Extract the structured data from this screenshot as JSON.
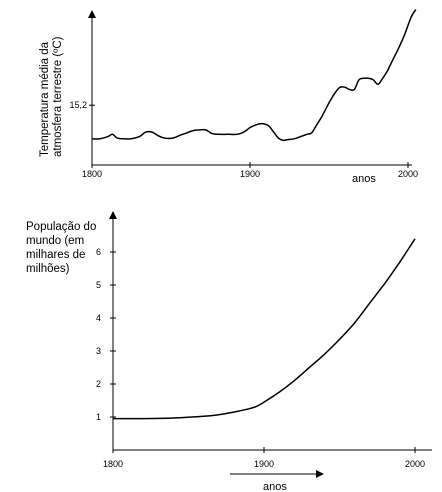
{
  "chart_data": [
    {
      "type": "line",
      "ylabel": "Temperatura média da atmosfera terrestre (ºC)",
      "ylabel_lines": [
        "Temperatura média da",
        "atmosfera terrestre (ºC)"
      ],
      "xlabel": "anos",
      "x_ticks": [
        1800,
        1900,
        2000
      ],
      "y_ticks": [
        15.2
      ],
      "y_tick_labels": [
        "15,2"
      ],
      "xlim": [
        1800,
        2005
      ],
      "ylim": [
        14.4,
        16.5
      ],
      "grid": false,
      "series": [
        {
          "x": [
            1800,
            1805,
            1810,
            1813,
            1816,
            1820,
            1825,
            1830,
            1834,
            1838,
            1842,
            1846,
            1851,
            1856,
            1860,
            1864,
            1868,
            1872,
            1876,
            1880,
            1886,
            1892,
            1896,
            1900,
            1903,
            1906,
            1909,
            1912,
            1915,
            1918,
            1921,
            1924,
            1928,
            1932,
            1936,
            1939,
            1942,
            1945,
            1948,
            1951,
            1954,
            1957,
            1960,
            1963,
            1966,
            1969,
            1972,
            1973,
            1975,
            1978,
            1981,
            1984,
            1987,
            1990,
            1994,
            1998,
            2002,
            2005
          ],
          "y": [
            14.75,
            14.75,
            14.78,
            14.81,
            14.76,
            14.75,
            14.75,
            14.78,
            14.84,
            14.84,
            14.79,
            14.76,
            14.76,
            14.8,
            14.83,
            14.86,
            14.87,
            14.87,
            14.82,
            14.81,
            14.81,
            14.81,
            14.84,
            14.9,
            14.93,
            14.95,
            14.95,
            14.92,
            14.84,
            14.76,
            14.73,
            14.74,
            14.75,
            14.78,
            14.81,
            14.83,
            14.93,
            15.03,
            15.15,
            15.27,
            15.37,
            15.44,
            15.44,
            15.41,
            15.41,
            15.54,
            15.56,
            15.56,
            15.56,
            15.54,
            15.48,
            15.56,
            15.66,
            15.79,
            15.96,
            16.15,
            16.38,
            16.48
          ]
        }
      ]
    },
    {
      "type": "line",
      "ylabel": "População do mundo (em milhares de milhões)",
      "ylabel_lines": [
        "População do",
        "mundo (em",
        "milhares de",
        "milhões)"
      ],
      "xlabel": "anos",
      "x_ticks": [
        1800,
        1900,
        2000
      ],
      "y_ticks": [
        1,
        2,
        3,
        4,
        5,
        6
      ],
      "xlim": [
        1800,
        2000
      ],
      "ylim": [
        0,
        6.8
      ],
      "grid": false,
      "series": [
        {
          "x": [
            1800,
            1820,
            1840,
            1860,
            1870,
            1880,
            1890,
            1895,
            1900,
            1910,
            1920,
            1930,
            1940,
            1950,
            1960,
            1970,
            1980,
            1990,
            2000
          ],
          "y": [
            0.95,
            0.95,
            0.97,
            1.02,
            1.07,
            1.15,
            1.25,
            1.32,
            1.45,
            1.75,
            2.1,
            2.5,
            2.9,
            3.35,
            3.85,
            4.45,
            5.05,
            5.7,
            6.4
          ]
        }
      ]
    }
  ]
}
